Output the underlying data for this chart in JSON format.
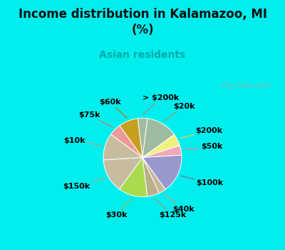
{
  "title": "Income distribution in Kalamazoo, MI\n(%)",
  "subtitle": "Asian residents",
  "title_color": "#111111",
  "subtitle_color": "#00AAAA",
  "background_color": "#00EEEE",
  "chart_bg_color": "#E0F0E8",
  "labels": [
    "> $200k",
    "$20k",
    "$200k",
    "$50k",
    "$100k",
    "$40k",
    "$125k",
    "$30k",
    "$150k",
    "$10k",
    "$75k",
    "$60k"
  ],
  "values": [
    4,
    13,
    5,
    4,
    16,
    3,
    5,
    12,
    14,
    11,
    5,
    8
  ],
  "wedge_colors": [
    "#A0BCA0",
    "#A0BCA0",
    "#F0F080",
    "#F0A8B8",
    "#9898CC",
    "#C8B898",
    "#B8B088",
    "#AADA50",
    "#C8BCA0",
    "#C8BCA0",
    "#EE9898",
    "#C8A020"
  ],
  "line_colors": [
    "#9090A0",
    "#90A070",
    "#D8D860",
    "#E08898",
    "#7070AA",
    "#C0A880",
    "#A0A070",
    "#90C040",
    "#B0A880",
    "#B0A880",
    "#CC7070",
    "#A08010"
  ],
  "startangle": 97,
  "label_fontsize": 8
}
